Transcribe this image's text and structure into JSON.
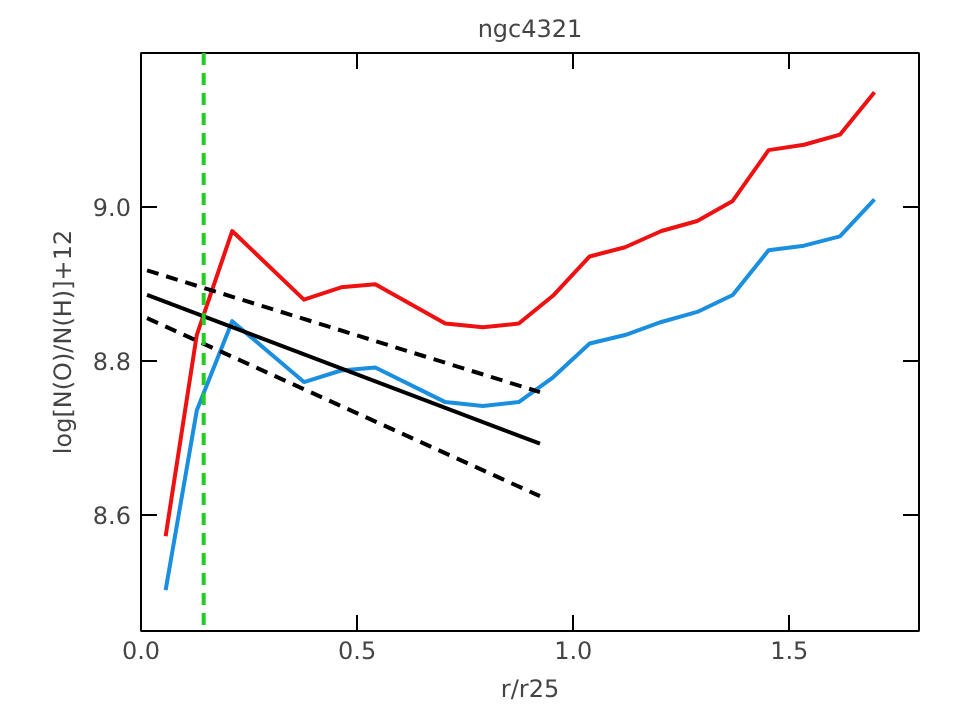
{
  "chart_data": {
    "type": "line",
    "title": "ngc4321",
    "xlabel": "r/r25",
    "ylabel": "log[N(O)/N(H)]+12",
    "xlim": [
      0.0,
      1.8
    ],
    "ylim": [
      8.45,
      9.2
    ],
    "xticks": [
      {
        "value": 0,
        "label": "0.0"
      },
      0.5,
      {
        "value": 1,
        "label": "1.0"
      },
      1.5
    ],
    "yticks": [
      8.6,
      8.8,
      {
        "value": 9,
        "label": "9.0"
      }
    ],
    "grid": false,
    "marker": "none",
    "series": [
      {
        "color": "#ee1111",
        "x": [
          0.057,
          0.129,
          0.211,
          0.377,
          0.463,
          0.542,
          0.704,
          0.791,
          0.874,
          0.953,
          1.038,
          1.12,
          1.204,
          1.287,
          1.369,
          1.452,
          1.534,
          1.617,
          1.697
        ],
        "values": [
          8.573,
          8.834,
          8.969,
          8.88,
          8.896,
          8.9,
          8.849,
          8.844,
          8.849,
          8.885,
          8.936,
          8.948,
          8.969,
          8.982,
          9.008,
          9.074,
          9.081,
          9.094,
          9.149
        ]
      },
      {
        "color": "#1a8fe0",
        "x": [
          0.057,
          0.129,
          0.211,
          0.377,
          0.463,
          0.542,
          0.704,
          0.791,
          0.874,
          0.951,
          1.038,
          1.12,
          1.204,
          1.287,
          1.369,
          1.452,
          1.534,
          1.617,
          1.697
        ],
        "values": [
          8.503,
          8.736,
          8.852,
          8.773,
          8.788,
          8.792,
          8.747,
          8.742,
          8.747,
          8.778,
          8.823,
          8.834,
          8.851,
          8.864,
          8.886,
          8.944,
          8.95,
          8.962,
          9.01
        ]
      },
      {
        "color": "#000000",
        "x": [
          0.014,
          0.923
        ],
        "values": [
          8.886,
          8.693
        ],
        "line_style": "solid"
      },
      {
        "color": "#000000",
        "x": [
          0.014,
          0.923
        ],
        "values": [
          8.918,
          8.76
        ],
        "line_style": "dashed"
      },
      {
        "color": "#000000",
        "x": [
          0.014,
          0.923
        ],
        "values": [
          8.856,
          8.625
        ],
        "line_style": "dashed"
      }
    ],
    "ref_lines": [
      {
        "axis": "x",
        "value": 0.145,
        "color": "#22cc22",
        "line_style": "dashed"
      }
    ]
  }
}
